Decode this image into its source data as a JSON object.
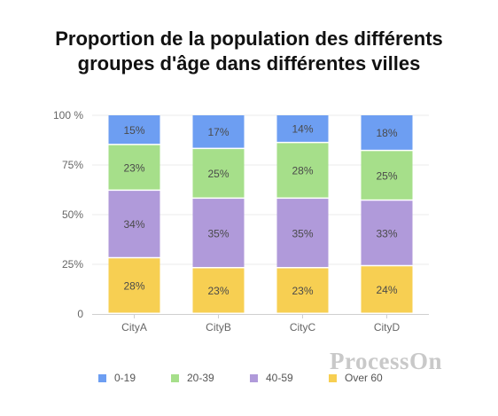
{
  "chart_data": {
    "type": "bar",
    "stacked": true,
    "title_lines": [
      "Proportion de la population des différents",
      "groupes d'âge dans différentes villes"
    ],
    "categories": [
      "CityA",
      "CityB",
      "CityC",
      "CityD"
    ],
    "series": [
      {
        "name": "0-19",
        "color": "#6d9ef2",
        "values": [
          15,
          17,
          14,
          18
        ]
      },
      {
        "name": "20-39",
        "color": "#a6df8a",
        "values": [
          23,
          25,
          28,
          25
        ]
      },
      {
        "name": "40-59",
        "color": "#b09ada",
        "values": [
          34,
          35,
          35,
          33
        ]
      },
      {
        "name": "Over 60",
        "color": "#f7cf52",
        "values": [
          28,
          23,
          23,
          24
        ]
      }
    ],
    "value_labels": [
      [
        "15%",
        "17%",
        "14%",
        "18%"
      ],
      [
        "23%",
        "25%",
        "28%",
        "25%"
      ],
      [
        "34%",
        "35%",
        "35%",
        "33%"
      ],
      [
        "28%",
        "23%",
        "23%",
        "24%"
      ]
    ],
    "y_ticks": [
      0,
      25,
      50,
      75,
      100
    ],
    "y_tick_labels": [
      "0",
      "25%",
      "50%",
      "75%",
      "100 %"
    ],
    "ylim": [
      0,
      100
    ],
    "grid": true,
    "legend_position": "bottom"
  },
  "watermark": "ProcessOn"
}
